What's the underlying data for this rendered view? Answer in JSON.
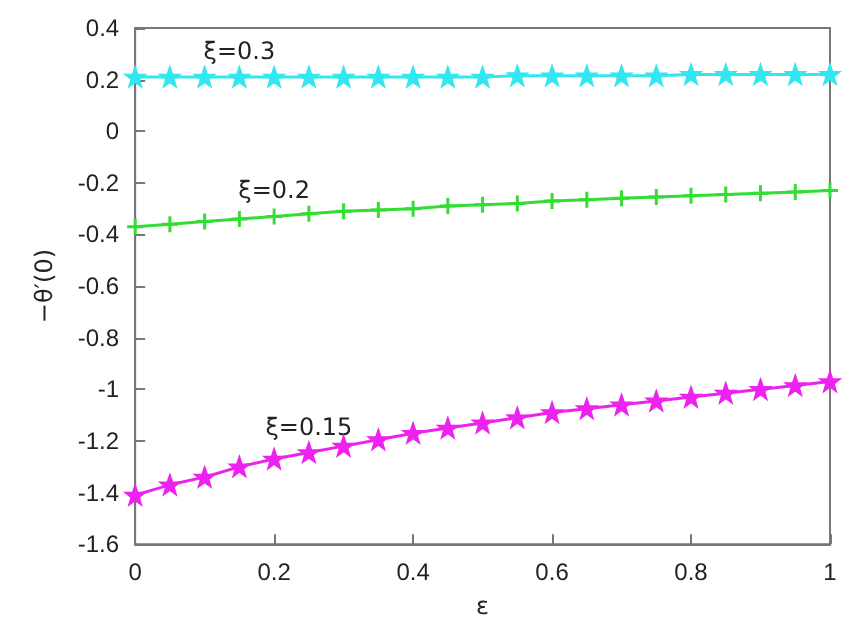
{
  "chart_data": {
    "type": "line",
    "xlabel": "ε",
    "ylabel": "−θ′(0)",
    "x": [
      0,
      0.05,
      0.1,
      0.15,
      0.2,
      0.25,
      0.3,
      0.35,
      0.4,
      0.45,
      0.5,
      0.55,
      0.6,
      0.65,
      0.7,
      0.75,
      0.8,
      0.85,
      0.9,
      0.95,
      1
    ],
    "series": [
      {
        "color": "#33e6f0",
        "marker": "star",
        "values": [
          0.21,
          0.21,
          0.21,
          0.21,
          0.21,
          0.21,
          0.21,
          0.21,
          0.21,
          0.21,
          0.21,
          0.215,
          0.215,
          0.215,
          0.215,
          0.215,
          0.22,
          0.22,
          0.22,
          0.22,
          0.22
        ]
      },
      {
        "color": "#33dd33",
        "marker": "cross",
        "values": [
          -0.37,
          -0.36,
          -0.35,
          -0.34,
          -0.33,
          -0.32,
          -0.31,
          -0.305,
          -0.3,
          -0.29,
          -0.285,
          -0.28,
          -0.27,
          -0.265,
          -0.26,
          -0.255,
          -0.25,
          -0.245,
          -0.24,
          -0.235,
          -0.23
        ]
      },
      {
        "color": "#ee22ee",
        "marker": "star",
        "values": [
          -1.41,
          -1.37,
          -1.34,
          -1.3,
          -1.27,
          -1.245,
          -1.22,
          -1.195,
          -1.17,
          -1.15,
          -1.13,
          -1.11,
          -1.09,
          -1.075,
          -1.06,
          -1.045,
          -1.03,
          -1.015,
          -1.0,
          -0.985,
          -0.97
        ]
      }
    ],
    "annotations": [
      "ξ=0.3",
      "ξ=0.2",
      "ξ=0.15"
    ],
    "xlim": [
      0,
      1
    ],
    "xticks": [
      0,
      0.2,
      0.4,
      0.6,
      0.8,
      1
    ],
    "ylim": [
      -1.6,
      0.4
    ],
    "yticks": [
      -1.6,
      -1.4,
      -1.2,
      -1,
      -0.8,
      -0.6,
      -0.4,
      -0.2,
      0,
      0.2,
      0.4
    ],
    "grid": false
  }
}
